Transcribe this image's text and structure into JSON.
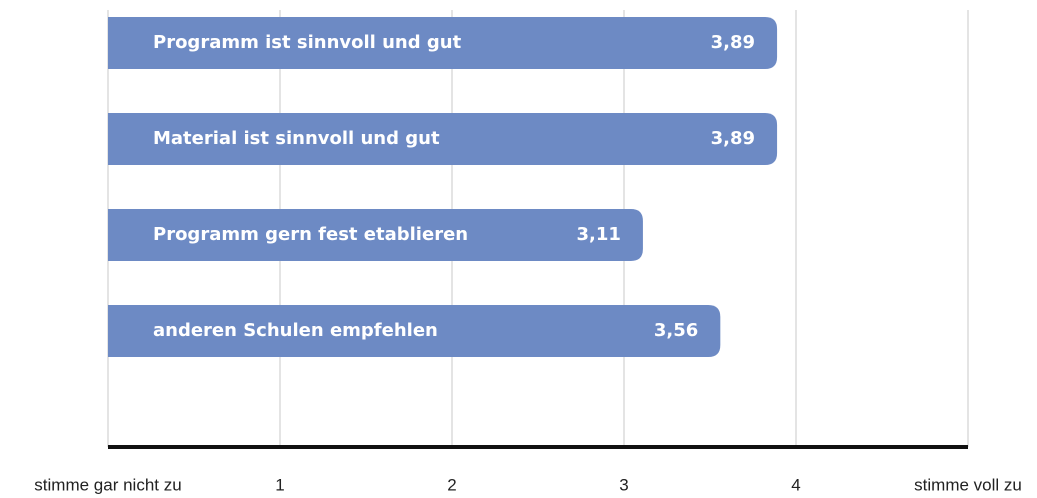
{
  "chart_data": {
    "type": "bar",
    "orientation": "horizontal",
    "categories": [
      "Programm ist sinnvoll und gut",
      "Material ist sinnvoll und gut",
      "Programm gern fest etablieren",
      "anderen Schulen empfehlen"
    ],
    "values": [
      3.89,
      3.89,
      3.11,
      3.56
    ],
    "value_labels": [
      "3,89",
      "3,89",
      "3,11",
      "3,56"
    ],
    "color": "#6d8ac4",
    "xlim": [
      0,
      5
    ],
    "xticks": [
      {
        "value": 0,
        "label": "stimme gar nicht zu"
      },
      1,
      2,
      3,
      4,
      {
        "value": 5,
        "label": "stimme voll zu"
      }
    ],
    "grid": true
  }
}
